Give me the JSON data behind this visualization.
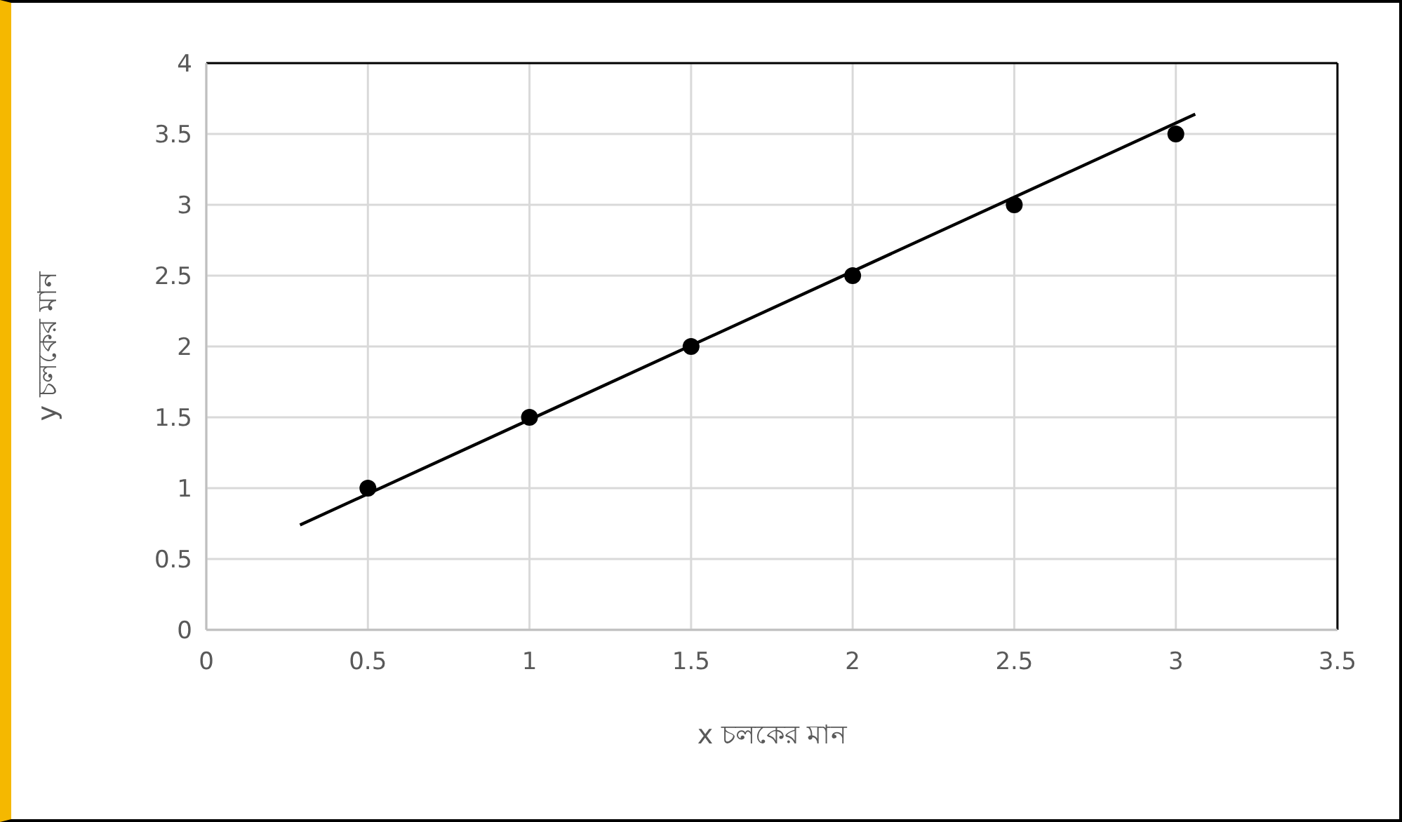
{
  "chart_data": {
    "type": "scatter",
    "xlabel": "x চলকের মান",
    "ylabel": "y চলকের মান",
    "xlim": [
      0,
      3.5
    ],
    "xticks": [
      0,
      0.5,
      1,
      1.5,
      2,
      2.5,
      3,
      3.5
    ],
    "ylim": [
      0,
      4
    ],
    "yticks": [
      0,
      0.5,
      1,
      1.5,
      2,
      2.5,
      3,
      3.5,
      4
    ],
    "grid": true,
    "series": [
      {
        "marker": "circle",
        "color": "#000000",
        "x": [
          0.5,
          1,
          1.5,
          2,
          2.5,
          3
        ],
        "values": [
          1,
          1.5,
          2,
          2.5,
          3,
          3.5
        ]
      },
      {
        "type": "line",
        "marker": "none",
        "color": "#000000",
        "x": [
          0.29,
          3.06
        ],
        "values": [
          0.74,
          3.64
        ]
      }
    ]
  }
}
